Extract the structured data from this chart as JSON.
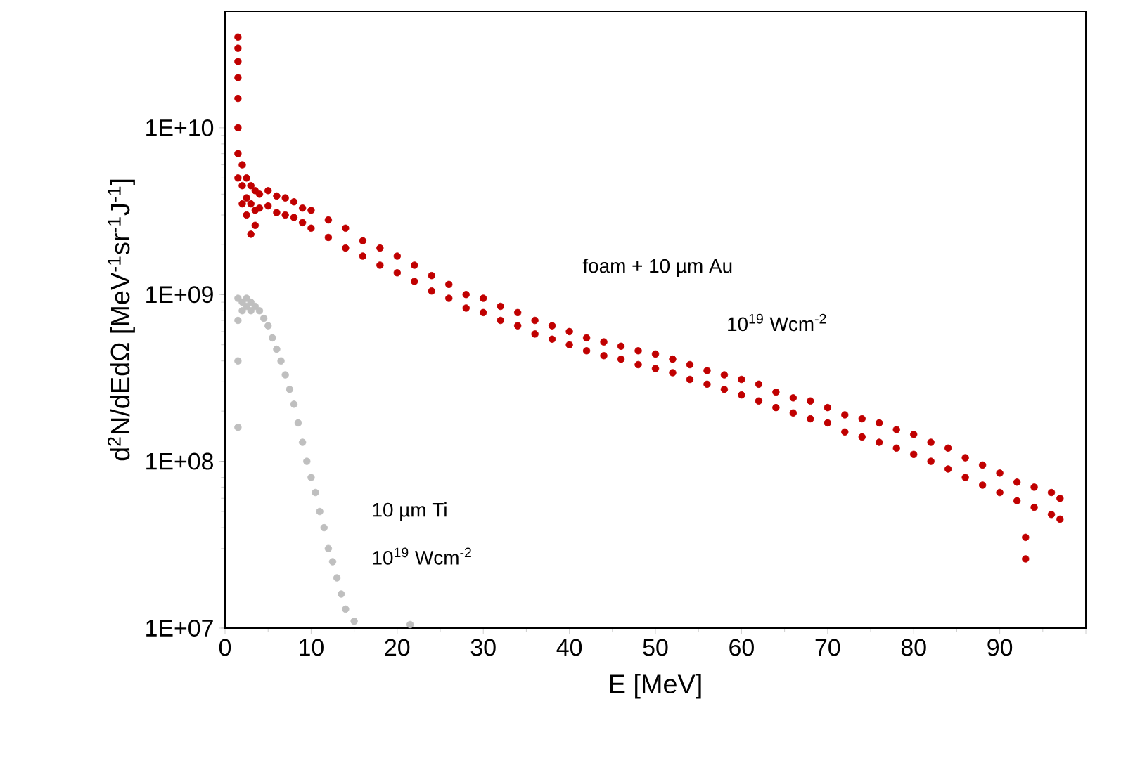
{
  "chart_data": {
    "type": "scatter",
    "xlabel": "E [MeV]",
    "ylabel": "d$^{2}$N/dEdΩ [MeV$^{-1}$sr$^{-1}$J$^{-1}$]",
    "log": "y",
    "grid": false,
    "xlim": [
      0,
      100
    ],
    "xticks": [
      0,
      10,
      20,
      30,
      40,
      50,
      60,
      70,
      80,
      90,
      {
        "value": 100,
        "label": null
      }
    ],
    "ylim": [
      10000000.0,
      50000000000.0
    ],
    "yticks": [
      {
        "value": 10000000.0,
        "label": "1E+07"
      },
      {
        "value": 100000000.0,
        "label": "1E+08"
      },
      {
        "value": 1000000000.0,
        "label": "1E+09"
      },
      {
        "value": 10000000000.0,
        "label": "1E+10"
      }
    ],
    "annotations": [
      "foam + 10 µm Au",
      "10$^{19}$ Wcm$^{-2}$",
      "10 µm Ti",
      "10$^{19}$ Wcm$^{-2}$"
    ],
    "series": [
      {
        "color": "#c00000",
        "x": [
          1.5,
          1.5,
          1.5,
          1.5,
          1.5,
          1.5,
          1.5,
          1.5,
          2,
          2,
          2,
          2.5,
          2.5,
          2.5,
          3,
          3,
          3,
          3.5,
          3.5,
          3.5,
          4,
          4,
          5,
          5,
          6,
          6,
          7,
          7,
          8,
          8,
          9,
          9,
          10,
          10,
          12,
          12,
          14,
          14,
          16,
          16,
          18,
          18,
          20,
          20,
          22,
          22,
          24,
          24,
          26,
          26,
          28,
          28,
          30,
          30,
          32,
          32,
          34,
          34,
          36,
          36,
          38,
          38,
          40,
          40,
          42,
          42,
          44,
          44,
          46,
          46,
          48,
          48,
          50,
          50,
          52,
          52,
          54,
          54,
          56,
          56,
          58,
          58,
          60,
          60,
          62,
          62,
          64,
          64,
          66,
          66,
          68,
          68,
          70,
          70,
          72,
          72,
          74,
          74,
          76,
          76,
          78,
          78,
          80,
          80,
          82,
          82,
          84,
          84,
          86,
          86,
          88,
          88,
          90,
          90,
          92,
          92,
          93,
          93,
          94,
          94,
          96,
          96,
          97,
          97
        ],
        "values": [
          35000000000.0,
          30000000000.0,
          25000000000.0,
          20000000000.0,
          15000000000.0,
          10000000000.0,
          7000000000.0,
          5000000000.0,
          6000000000.0,
          4500000000.0,
          3500000000.0,
          5000000000.0,
          3800000000.0,
          3000000000.0,
          4500000000.0,
          3500000000.0,
          2300000000.0,
          4200000000.0,
          3200000000.0,
          2600000000.0,
          4000000000.0,
          3300000000.0,
          4200000000.0,
          3400000000.0,
          3900000000.0,
          3100000000.0,
          3800000000.0,
          3000000000.0,
          3600000000.0,
          2900000000.0,
          3300000000.0,
          2700000000.0,
          3200000000.0,
          2500000000.0,
          2800000000.0,
          2200000000.0,
          2500000000.0,
          1900000000.0,
          2100000000.0,
          1700000000.0,
          1900000000.0,
          1500000000.0,
          1700000000.0,
          1350000000.0,
          1500000000.0,
          1200000000.0,
          1300000000.0,
          1050000000.0,
          1150000000.0,
          950000000.0,
          1000000000.0,
          830000000.0,
          950000000.0,
          780000000.0,
          850000000.0,
          700000000.0,
          780000000.0,
          650000000.0,
          700000000.0,
          580000000.0,
          650000000.0,
          540000000.0,
          600000000.0,
          500000000.0,
          550000000.0,
          460000000.0,
          520000000.0,
          430000000.0,
          490000000.0,
          410000000.0,
          460000000.0,
          380000000.0,
          440000000.0,
          360000000.0,
          410000000.0,
          340000000.0,
          380000000.0,
          310000000.0,
          350000000.0,
          290000000.0,
          330000000.0,
          270000000.0,
          310000000.0,
          250000000.0,
          290000000.0,
          230000000.0,
          260000000.0,
          210000000.0,
          240000000.0,
          195000000.0,
          230000000.0,
          180000000.0,
          210000000.0,
          170000000.0,
          190000000.0,
          150000000.0,
          180000000.0,
          140000000.0,
          170000000.0,
          130000000.0,
          155000000.0,
          120000000.0,
          145000000.0,
          110000000.0,
          130000000.0,
          100000000.0,
          120000000.0,
          90000000.0,
          105000000.0,
          80000000.0,
          95000000.0,
          72000000.0,
          85000000.0,
          65000000.0,
          75000000.0,
          58000000.0,
          26000000.0,
          35000000.0,
          70000000.0,
          53000000.0,
          65000000.0,
          48000000.0,
          60000000.0,
          45000000.0
        ]
      },
      {
        "color": "#bfbfbf",
        "x": [
          1.5,
          1.5,
          1.5,
          1.5,
          2,
          2,
          2.5,
          2.5,
          3,
          3,
          3.5,
          4,
          4.5,
          5,
          5.5,
          6,
          6.5,
          7,
          7.5,
          8,
          8.5,
          9,
          9.5,
          10,
          10.5,
          11,
          11.5,
          12,
          12.5,
          13,
          13.5,
          14,
          15,
          21.5
        ],
        "values": [
          950000000.0,
          700000000.0,
          400000000.0,
          160000000.0,
          900000000.0,
          800000000.0,
          950000000.0,
          850000000.0,
          900000000.0,
          800000000.0,
          850000000.0,
          800000000.0,
          720000000.0,
          650000000.0,
          550000000.0,
          470000000.0,
          400000000.0,
          330000000.0,
          270000000.0,
          220000000.0,
          170000000.0,
          130000000.0,
          100000000.0,
          80000000.0,
          65000000.0,
          50000000.0,
          40000000.0,
          30000000.0,
          25000000.0,
          20000000.0,
          16000000.0,
          13000000.0,
          11000000.0,
          10500000.0
        ]
      }
    ]
  }
}
